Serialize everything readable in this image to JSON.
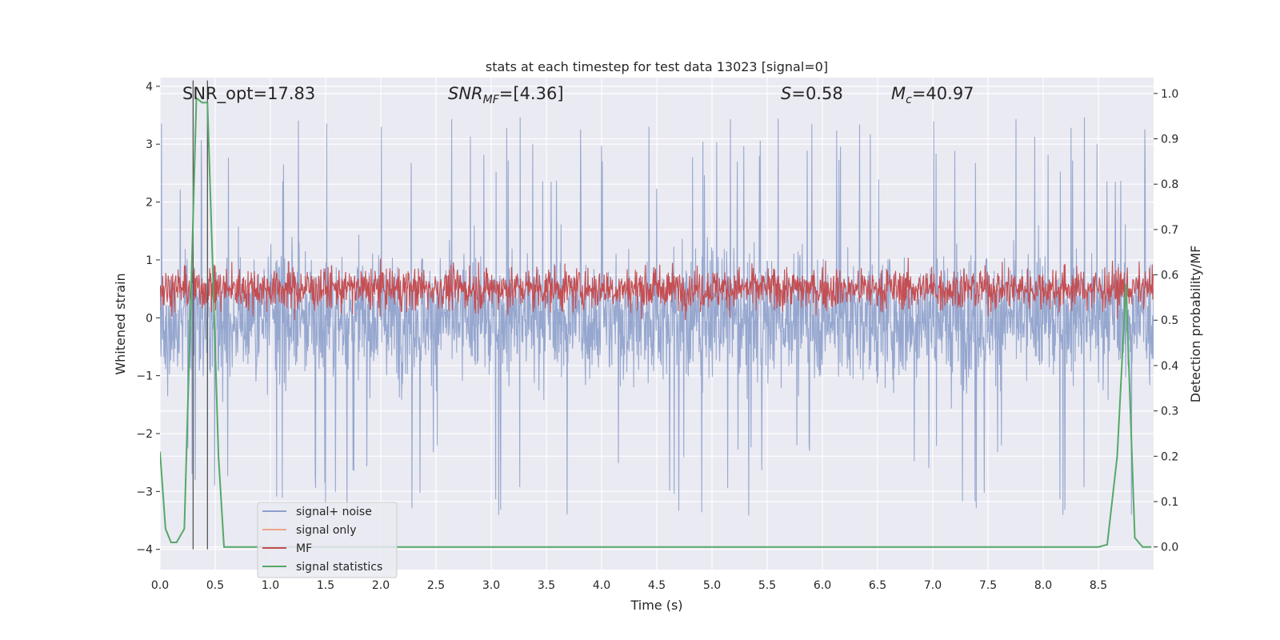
{
  "chart_data": {
    "type": "line",
    "title": "stats at each timestep for test data 13023 [signal=0]",
    "xlabel": "Time (s)",
    "ylabel": "Whitened strain",
    "ylabel_right": "Detection probability/MF",
    "xlim": [
      0,
      9.0
    ],
    "ylim": [
      -4.35,
      4.15
    ],
    "ylim_right": [
      -0.05,
      1.035
    ],
    "x_ticks": [
      "0.0",
      "0.5",
      "1.0",
      "1.5",
      "2.0",
      "2.5",
      "3.0",
      "3.5",
      "4.0",
      "4.5",
      "5.0",
      "5.5",
      "6.0",
      "6.5",
      "7.0",
      "7.5",
      "8.0",
      "8.5"
    ],
    "y_ticks": [
      "4",
      "3",
      "2",
      "1",
      "0",
      "−1",
      "−2",
      "−3",
      "−4"
    ],
    "y_ticks_right": [
      "1.0",
      "0.9",
      "0.8",
      "0.7",
      "0.6",
      "0.5",
      "0.4",
      "0.3",
      "0.2",
      "0.1",
      "0.0"
    ],
    "grid": true,
    "legend_position": "lower-left",
    "annotations": {
      "snr_opt": "SNR_opt=17.83",
      "snr_mf_main": "SNR",
      "snr_mf_sub": "MF",
      "snr_mf_rest": "=[4.36]",
      "s_main": "S",
      "s_rest": "=0.58",
      "mc_main": "M",
      "mc_sub": "c",
      "mc_rest": "=40.97"
    },
    "vlines_x": [
      0.3,
      0.43
    ],
    "series": [
      {
        "name": "signal+ noise",
        "color": "#8da0cb",
        "envelope_typical": [
          -1.8,
          1.8
        ],
        "peaks_max": 3.7,
        "peaks_min": -3.8
      },
      {
        "name": "signal only",
        "color": "#e8a68a"
      },
      {
        "name": "MF",
        "color": "#c44e52",
        "axis": "right",
        "range": [
          0.51,
          0.63
        ]
      },
      {
        "name": "signal statistics",
        "color": "#55a868",
        "axis": "right",
        "x": [
          0.0,
          0.05,
          0.1,
          0.15,
          0.22,
          0.28,
          0.33,
          0.38,
          0.43,
          0.48,
          0.53,
          0.58,
          0.65,
          1.0,
          2.0,
          3.0,
          4.0,
          5.0,
          6.0,
          7.0,
          8.0,
          8.5,
          8.58,
          8.67,
          8.75,
          8.83,
          8.9,
          8.98
        ],
        "y": [
          0.21,
          0.04,
          0.01,
          0.01,
          0.04,
          0.55,
          0.99,
          0.98,
          0.98,
          0.6,
          0.2,
          0.0,
          0.0,
          0.0,
          0.0,
          0.0,
          0.0,
          0.0,
          0.0,
          0.0,
          0.0,
          0.0,
          0.005,
          0.2,
          0.58,
          0.02,
          0.0,
          0.0
        ]
      }
    ]
  },
  "colors": {
    "plot_bg": "#eaeaf2",
    "grid": "#ffffff",
    "vline": "#555555"
  }
}
